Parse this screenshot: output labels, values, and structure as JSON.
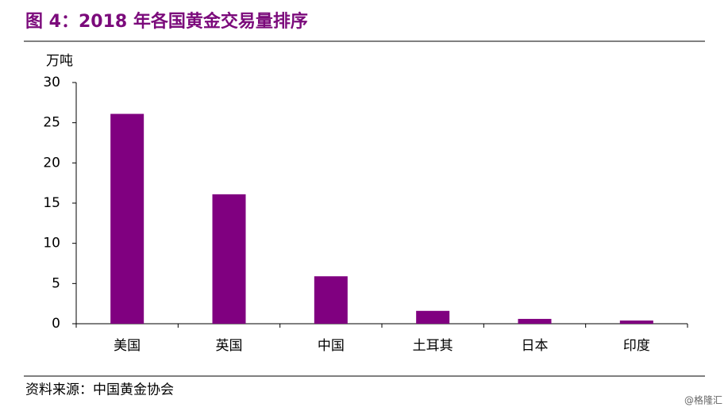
{
  "chart_data": {
    "type": "bar",
    "title": "图 4：2018 年各国黄金交易量排序",
    "y_label": "万吨",
    "categories": [
      "美国",
      "英国",
      "中国",
      "土耳其",
      "日本",
      "印度"
    ],
    "values": [
      26.1,
      16.1,
      5.9,
      1.6,
      0.6,
      0.4
    ],
    "color": "#800080",
    "ylim": [
      0,
      30
    ],
    "yticks": [
      0,
      5,
      10,
      15,
      20,
      25,
      30
    ],
    "grid": false,
    "source": "资料来源：中国黄金协会",
    "watermark": "@格隆汇"
  }
}
